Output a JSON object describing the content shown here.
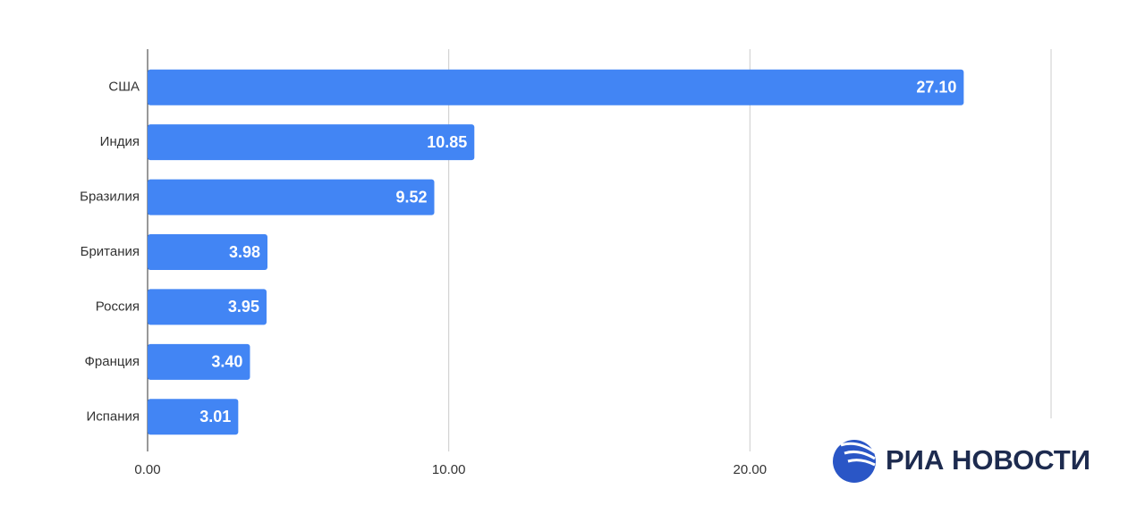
{
  "chart_data": {
    "type": "bar",
    "orientation": "horizontal",
    "categories": [
      "США",
      "Индия",
      "Бразилия",
      "Британия",
      "Россия",
      "Франция",
      "Испания"
    ],
    "values": [
      27.1,
      10.85,
      9.52,
      3.98,
      3.95,
      3.4,
      3.01
    ],
    "value_labels": [
      "27.10",
      "10.85",
      "9.52",
      "3.98",
      "3.95",
      "3.40",
      "3.01"
    ],
    "color": "#4285f4",
    "xlim": [
      0,
      30
    ],
    "xticks": [
      {
        "value": 0,
        "label": "0.00"
      },
      {
        "value": 10,
        "label": "10.00"
      },
      {
        "value": 20,
        "label": "20.00"
      }
    ],
    "grid": true,
    "source": "РИА НОВОСТИ"
  }
}
